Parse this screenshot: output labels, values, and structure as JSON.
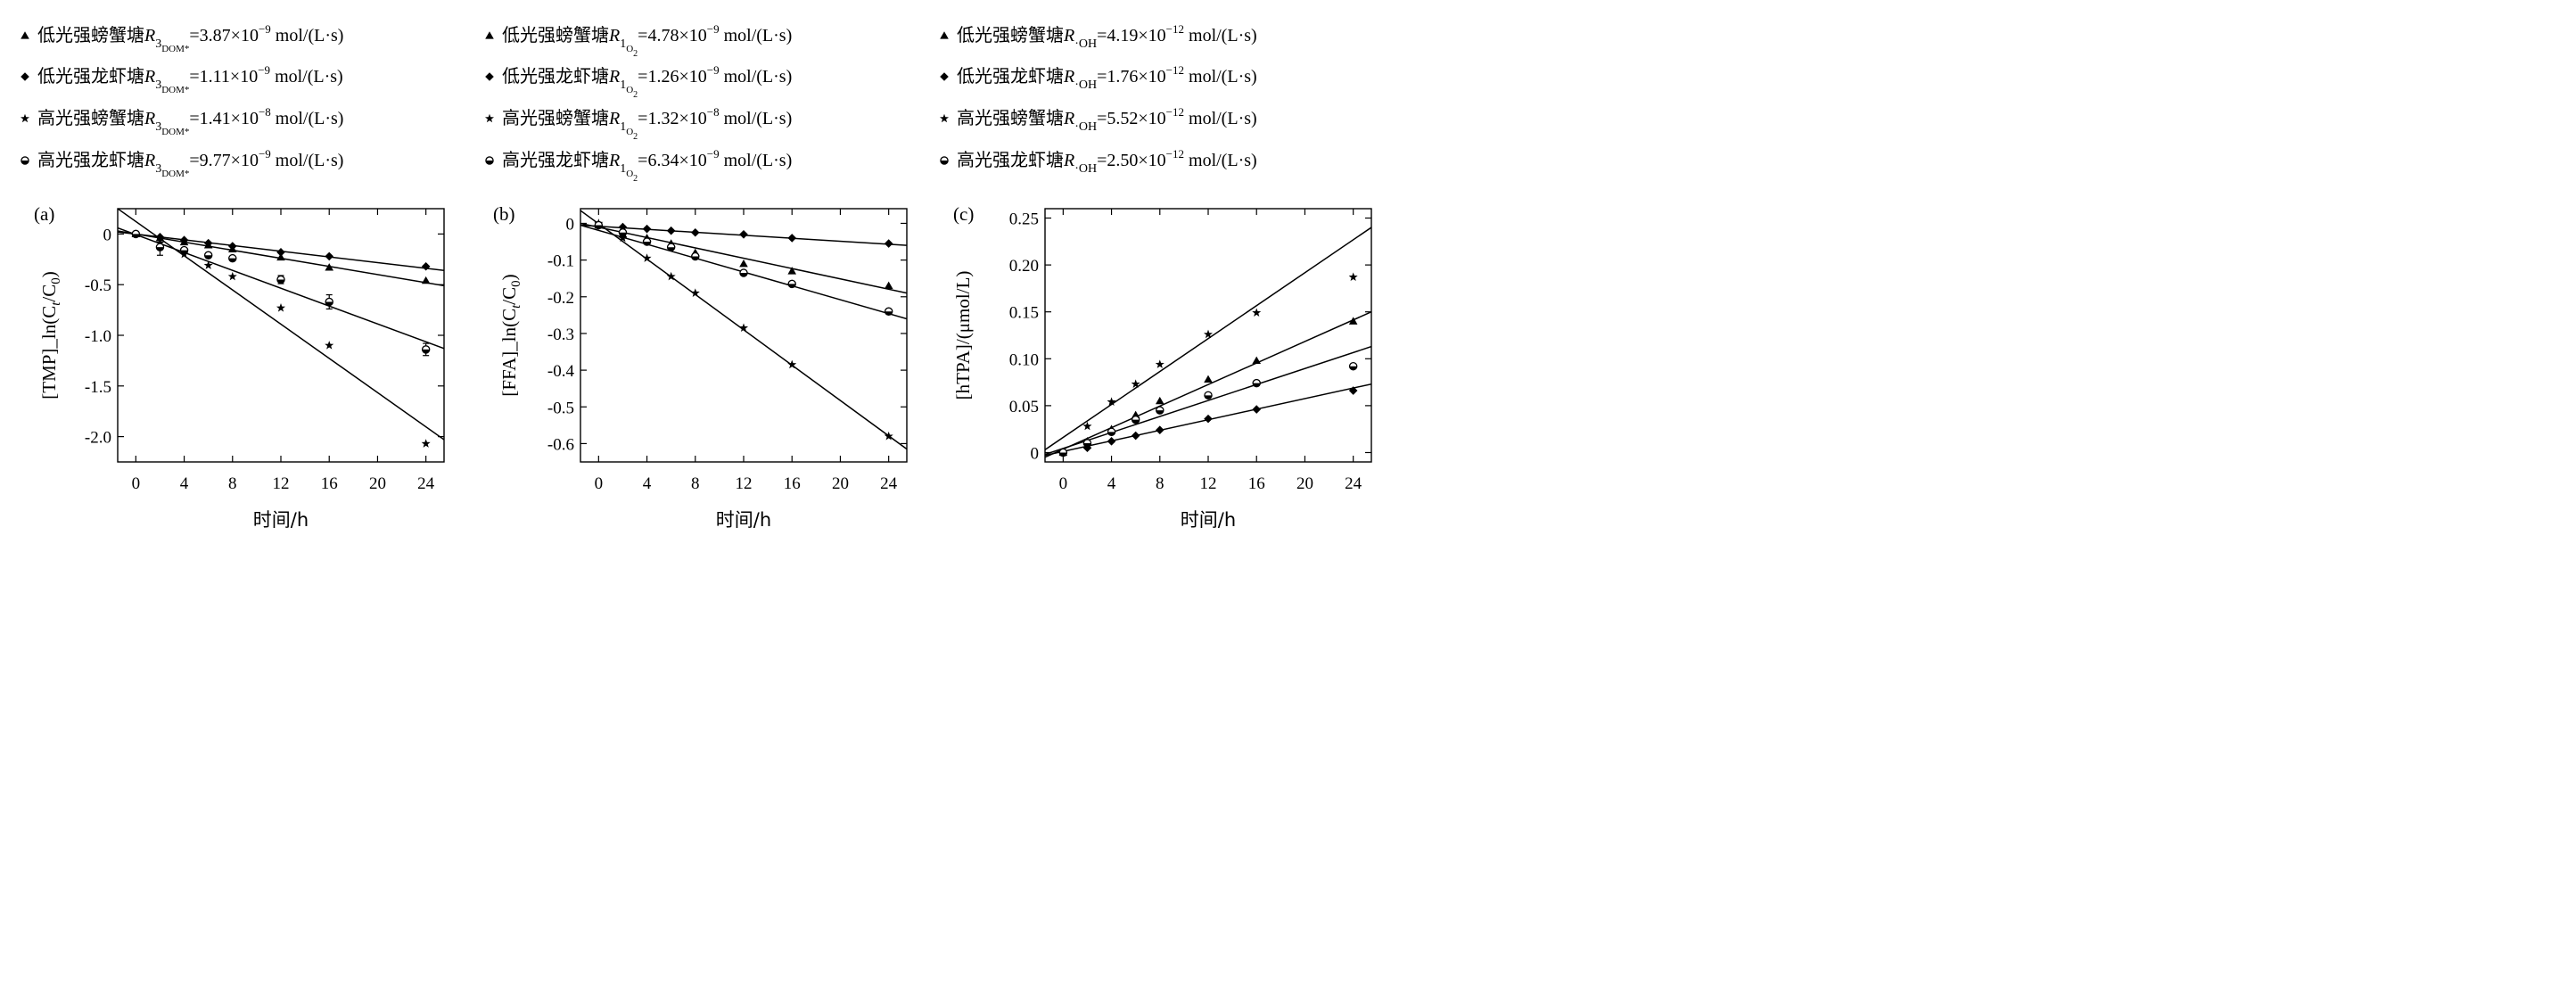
{
  "legends": [
    [
      {
        "marker": "triangle",
        "prefix": "低光强螃蟹塘",
        "sym": "R",
        "sub": "3",
        "subsub": "DOM*",
        "value": "=3.87×10",
        "exp": "−9",
        "unit": " mol/(L·s)"
      },
      {
        "marker": "diamond",
        "prefix": "低光强龙虾塘",
        "sym": "R",
        "sub": "3",
        "subsub": "DOM*",
        "value": "=1.11×10",
        "exp": "−9",
        "unit": " mol/(L·s)"
      },
      {
        "marker": "star",
        "prefix": "高光强螃蟹塘",
        "sym": "R",
        "sub": "3",
        "subsub": "DOM*",
        "value": "=1.41×10",
        "exp": "−8",
        "unit": " mol/(L·s)"
      },
      {
        "marker": "circle",
        "prefix": "高光强龙虾塘",
        "sym": "R",
        "sub": "3",
        "subsub": "DOM*",
        "value": "=9.77×10",
        "exp": "−9",
        "unit": " mol/(L·s)"
      }
    ],
    [
      {
        "marker": "triangle",
        "prefix": "低光强螃蟹塘",
        "sym": "R",
        "sub": "1",
        "subsub": "O",
        "subsub2": "2",
        "value": "=4.78×10",
        "exp": "−9",
        "unit": " mol/(L·s)"
      },
      {
        "marker": "diamond",
        "prefix": "低光强龙虾塘",
        "sym": "R",
        "sub": "1",
        "subsub": "O",
        "subsub2": "2",
        "value": "=1.26×10",
        "exp": "−9",
        "unit": " mol/(L·s)"
      },
      {
        "marker": "star",
        "prefix": "高光强螃蟹塘",
        "sym": "R",
        "sub": "1",
        "subsub": "O",
        "subsub2": "2",
        "value": "=1.32×10",
        "exp": "−8",
        "unit": " mol/(L·s)"
      },
      {
        "marker": "circle",
        "prefix": "高光强龙虾塘",
        "sym": "R",
        "sub": "1",
        "subsub": "O",
        "subsub2": "2",
        "value": "=6.34×10",
        "exp": "−9",
        "unit": " mol/(L·s)"
      }
    ],
    [
      {
        "marker": "triangle",
        "prefix": "低光强螃蟹塘",
        "sym": "R",
        "sub": "·OH",
        "value": "=4.19×10",
        "exp": "−12",
        "unit": " mol/(L·s)"
      },
      {
        "marker": "diamond",
        "prefix": "低光强龙虾塘",
        "sym": "R",
        "sub": "·OH",
        "value": "=1.76×10",
        "exp": "−12",
        "unit": " mol/(L·s)"
      },
      {
        "marker": "star",
        "prefix": "高光强螃蟹塘",
        "sym": "R",
        "sub": "·OH",
        "value": "=5.52×10",
        "exp": "−12",
        "unit": " mol/(L·s)"
      },
      {
        "marker": "circle",
        "prefix": "高光强龙虾塘",
        "sym": "R",
        "sub": "·OH",
        "value": "=2.50×10",
        "exp": "−12",
        "unit": " mol/(L·s)"
      }
    ]
  ],
  "chart_data": [
    {
      "type": "scatter",
      "panel_label": "(a)",
      "xlabel": "时间/h",
      "ylabel": "[TMP]_ln(C_t/C_0)",
      "xlim": [
        -1.5,
        25.5
      ],
      "ylim": [
        -2.25,
        0.25
      ],
      "xticks": [
        0,
        4,
        8,
        12,
        16,
        20,
        24
      ],
      "yticks": [
        0,
        -0.5,
        -1.0,
        -1.5,
        -2.0
      ],
      "ytick_labels": [
        "0",
        "-0.5",
        "-1.0",
        "-1.5",
        "-2.0"
      ],
      "series": [
        {
          "marker": "triangle",
          "x": [
            0,
            2,
            4,
            6,
            8,
            12,
            16,
            24
          ],
          "y": [
            0,
            -0.04,
            -0.08,
            -0.11,
            -0.15,
            -0.23,
            -0.33,
            -0.46
          ],
          "fit": [
            [
              -1.5,
              0.03
            ],
            [
              25.5,
              -0.51
            ]
          ]
        },
        {
          "marker": "diamond",
          "x": [
            0,
            2,
            4,
            6,
            8,
            12,
            16,
            24
          ],
          "y": [
            0,
            -0.03,
            -0.06,
            -0.09,
            -0.12,
            -0.18,
            -0.22,
            -0.32
          ],
          "fit": [
            [
              -1.5,
              0.02
            ],
            [
              25.5,
              -0.36
            ]
          ]
        },
        {
          "marker": "star",
          "x": [
            2,
            4,
            6,
            8,
            12,
            16,
            24
          ],
          "y": [
            -0.09,
            -0.2,
            -0.31,
            -0.42,
            -0.73,
            -1.1,
            -2.07
          ],
          "fit": [
            [
              -1.5,
              0.25
            ],
            [
              25.5,
              -2.03
            ]
          ]
        },
        {
          "marker": "circle",
          "x": [
            0,
            2,
            4,
            6,
            8,
            12,
            16,
            24
          ],
          "y": [
            0,
            -0.13,
            -0.16,
            -0.21,
            -0.24,
            -0.45,
            -0.67,
            -1.14
          ],
          "err": [
            0,
            0.08,
            0,
            0,
            0,
            0.04,
            0.07,
            0.06
          ],
          "fit": [
            [
              -1.5,
              0.06
            ],
            [
              25.5,
              -1.13
            ]
          ]
        }
      ]
    },
    {
      "type": "scatter",
      "panel_label": "(b)",
      "xlabel": "时间/h",
      "ylabel": "[FFA]_ln(C_t/C_0)",
      "xlim": [
        -1.5,
        25.5
      ],
      "ylim": [
        -0.65,
        0.04
      ],
      "xticks": [
        0,
        4,
        8,
        12,
        16,
        20,
        24
      ],
      "yticks": [
        0,
        -0.1,
        -0.2,
        -0.3,
        -0.4,
        -0.5,
        -0.6
      ],
      "ytick_labels": [
        "0",
        "-0.1",
        "-0.2",
        "-0.3",
        "-0.4",
        "-0.5",
        "-0.6"
      ],
      "series": [
        {
          "marker": "triangle",
          "x": [
            0,
            2,
            4,
            6,
            8,
            12,
            16,
            24
          ],
          "y": [
            -0.005,
            -0.03,
            -0.04,
            -0.055,
            -0.08,
            -0.11,
            -0.13,
            -0.17
          ],
          "fit": [
            [
              -1.5,
              0.0
            ],
            [
              25.5,
              -0.19
            ]
          ]
        },
        {
          "marker": "diamond",
          "x": [
            0,
            2,
            4,
            6,
            8,
            12,
            16,
            24
          ],
          "y": [
            -0.005,
            -0.01,
            -0.015,
            -0.02,
            -0.025,
            -0.03,
            -0.04,
            -0.055
          ],
          "fit": [
            [
              -1.5,
              -0.005
            ],
            [
              25.5,
              -0.06
            ]
          ]
        },
        {
          "marker": "star",
          "x": [
            0,
            2,
            4,
            6,
            8,
            12,
            16,
            24
          ],
          "y": [
            0,
            -0.04,
            -0.095,
            -0.145,
            -0.19,
            -0.285,
            -0.385,
            -0.58
          ],
          "fit": [
            [
              -1.5,
              0.035
            ],
            [
              25.5,
              -0.615
            ]
          ]
        },
        {
          "marker": "circle",
          "x": [
            0,
            2,
            4,
            6,
            8,
            12,
            16,
            24
          ],
          "y": [
            -0.005,
            -0.025,
            -0.05,
            -0.065,
            -0.09,
            -0.135,
            -0.165,
            -0.24
          ],
          "fit": [
            [
              -1.5,
              -0.005
            ],
            [
              25.5,
              -0.26
            ]
          ]
        }
      ]
    },
    {
      "type": "scatter",
      "panel_label": "(c)",
      "xlabel": "时间/h",
      "ylabel": "[hTPA]/(μmol/L)",
      "xlim": [
        -1.5,
        25.5
      ],
      "ylim": [
        -0.01,
        0.26
      ],
      "xticks": [
        0,
        4,
        8,
        12,
        16,
        20,
        24
      ],
      "yticks": [
        0,
        0.05,
        0.1,
        0.15,
        0.2,
        0.25
      ],
      "ytick_labels": [
        "0",
        "0.05",
        "0.10",
        "0.15",
        "0.20",
        "0.25"
      ],
      "series": [
        {
          "marker": "triangle",
          "x": [
            0,
            2,
            4,
            6,
            8,
            12,
            16,
            24
          ],
          "y": [
            0.0,
            0.012,
            0.025,
            0.04,
            0.055,
            0.078,
            0.098,
            0.14
          ],
          "fit": [
            [
              -1.5,
              -0.005
            ],
            [
              25.5,
              0.15
            ]
          ]
        },
        {
          "marker": "diamond",
          "x": [
            0,
            2,
            4,
            6,
            8,
            12,
            16,
            24
          ],
          "y": [
            0.0,
            0.005,
            0.012,
            0.018,
            0.024,
            0.036,
            0.046,
            0.066
          ],
          "fit": [
            [
              -1.5,
              -0.003
            ],
            [
              25.5,
              0.073
            ]
          ]
        },
        {
          "marker": "star",
          "x": [
            0,
            2,
            4,
            6,
            8,
            12,
            16,
            24
          ],
          "y": [
            0.0,
            0.028,
            0.054,
            0.073,
            0.094,
            0.126,
            0.149,
            0.187
          ],
          "fit": [
            [
              -1.5,
              0.003
            ],
            [
              25.5,
              0.24
            ]
          ]
        },
        {
          "marker": "circle",
          "x": [
            0,
            2,
            4,
            6,
            8,
            12,
            16,
            24
          ],
          "y": [
            0.0,
            0.01,
            0.022,
            0.035,
            0.045,
            0.061,
            0.074,
            0.092
          ],
          "fit": [
            [
              -1.5,
              -0.002
            ],
            [
              25.5,
              0.113
            ]
          ]
        }
      ]
    }
  ]
}
